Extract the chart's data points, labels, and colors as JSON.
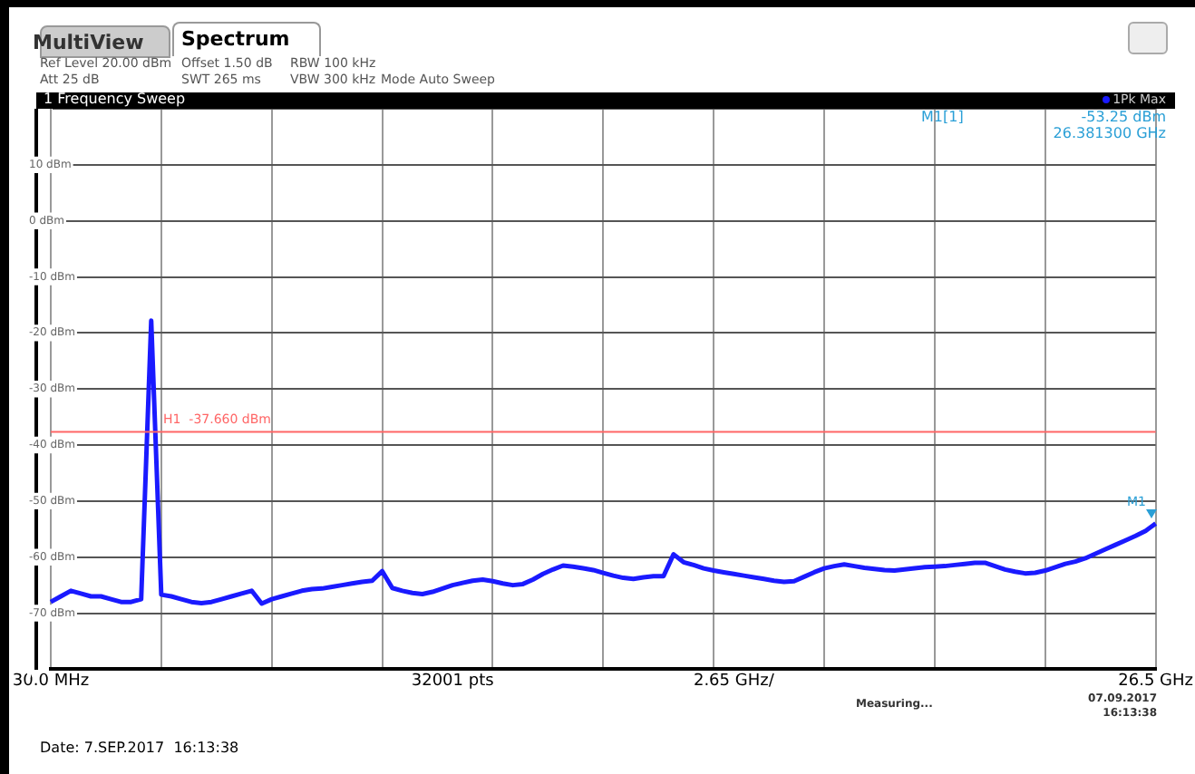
{
  "chart_data": {
    "type": "line",
    "title": "1 Frequency Sweep",
    "categories": [
      "30.0 MHz",
      null,
      null,
      null,
      null,
      null,
      null,
      null,
      null,
      null,
      null,
      null,
      null,
      null,
      null,
      null,
      null,
      null,
      null,
      null,
      null,
      null,
      null,
      null,
      null,
      null,
      null,
      null,
      null,
      null,
      null,
      null,
      null,
      null,
      null,
      null,
      null,
      null,
      null,
      null,
      "32001 pts",
      null,
      null,
      null,
      null,
      null,
      null,
      null,
      null,
      null,
      null,
      null,
      null,
      null,
      null,
      null,
      null,
      null,
      null,
      null,
      null,
      null,
      null,
      null,
      null,
      null,
      null,
      null,
      "2.65 GHz/",
      null,
      null,
      null,
      null,
      null,
      null,
      null,
      null,
      null,
      null,
      null,
      null,
      null,
      null,
      null,
      null,
      null,
      null,
      null,
      null,
      null,
      null,
      null,
      null,
      null,
      null,
      null,
      null,
      null,
      null,
      null,
      null,
      null,
      null,
      null,
      null,
      null,
      null,
      null,
      null,
      null,
      "26.5 GHz"
    ],
    "ylim": [
      -80,
      20
    ],
    "yticks": [
      {
        "value": -80,
        "label": null
      },
      {
        "value": -70,
        "label": "-70 dBm"
      },
      {
        "value": -60,
        "label": "-60 dBm"
      },
      {
        "value": -50,
        "label": "-50 dBm"
      },
      {
        "value": -40,
        "label": "-40 dBm"
      },
      {
        "value": -30,
        "label": "-30 dBm"
      },
      {
        "value": -20,
        "label": "-20 dBm"
      },
      {
        "value": -10,
        "label": "-10 dBm"
      },
      {
        "value": 0,
        "label": "0 dBm"
      },
      {
        "value": 10,
        "label": "10 dBm"
      },
      {
        "value": 20,
        "label": null
      }
    ],
    "grid": true,
    "legend": "top right",
    "marker": "none",
    "line_style": "solid",
    "series": [
      {
        "name": "1Pk Max",
        "color": "#1a1aff",
        "values": [
          -68,
          -67,
          -66,
          -66.5,
          -67,
          -67,
          -67.5,
          -68,
          -68,
          -67.5,
          -17.8,
          -66.7,
          -67,
          -67.5,
          -68,
          -68.2,
          -68,
          -67.5,
          -67,
          -66.5,
          -66,
          -68.3,
          -67.5,
          -67,
          -66.5,
          -66,
          -65.7,
          -65.6,
          -65.3,
          -65,
          -64.7,
          -64.4,
          -64.2,
          -62.5,
          -65.5,
          -66,
          -66.4,
          -66.6,
          -66.2,
          -65.6,
          -65,
          -64.6,
          -64.2,
          -64,
          -64.3,
          -64.7,
          -65,
          -64.8,
          -64,
          -63,
          -62.2,
          -61.5,
          -61.7,
          -62,
          -62.3,
          -62.8,
          -63.3,
          -63.7,
          -63.9,
          -63.6,
          -63.4,
          -63.4,
          -59.5,
          -60.9,
          -61.4,
          -62,
          -62.4,
          -62.7,
          -63,
          -63.3,
          -63.6,
          -63.9,
          -64.2,
          -64.4,
          -64.3,
          -63.5,
          -62.7,
          -62,
          -61.6,
          -61.3,
          -61.6,
          -61.9,
          -62.1,
          -62.3,
          -62.4,
          -62.2,
          -62,
          -61.8,
          -61.7,
          -61.6,
          -61.4,
          -61.2,
          -61,
          -61,
          -61.6,
          -62.2,
          -62.6,
          -62.9,
          -62.8,
          -62.4,
          -61.8,
          -61.2,
          -60.8,
          -60.2,
          -59.4,
          -58.6,
          -57.8,
          -57,
          -56.2,
          -55.3,
          -54
        ]
      }
    ],
    "ref_lines": [
      {
        "axis": "y",
        "value": -37.66,
        "label": "H1  -37.660 dBm",
        "color": "#ff6666"
      }
    ],
    "annotations": [
      "MultiView",
      "Spectrum",
      "Ref Level 20.00 dBm",
      "Offset 1.50 dB",
      "RBW 100 kHz",
      "Att 25 dB",
      "SWT 265 ms",
      "VBW 300 kHz",
      "Mode Auto Sweep",
      "M1[1]",
      "-53.25 dBm",
      "26.381300 GHz",
      "Measuring...",
      "07.09.2017",
      "16:13:38",
      "Date: 7.SEP.2017  16:13:38",
      "M1"
    ]
  }
}
